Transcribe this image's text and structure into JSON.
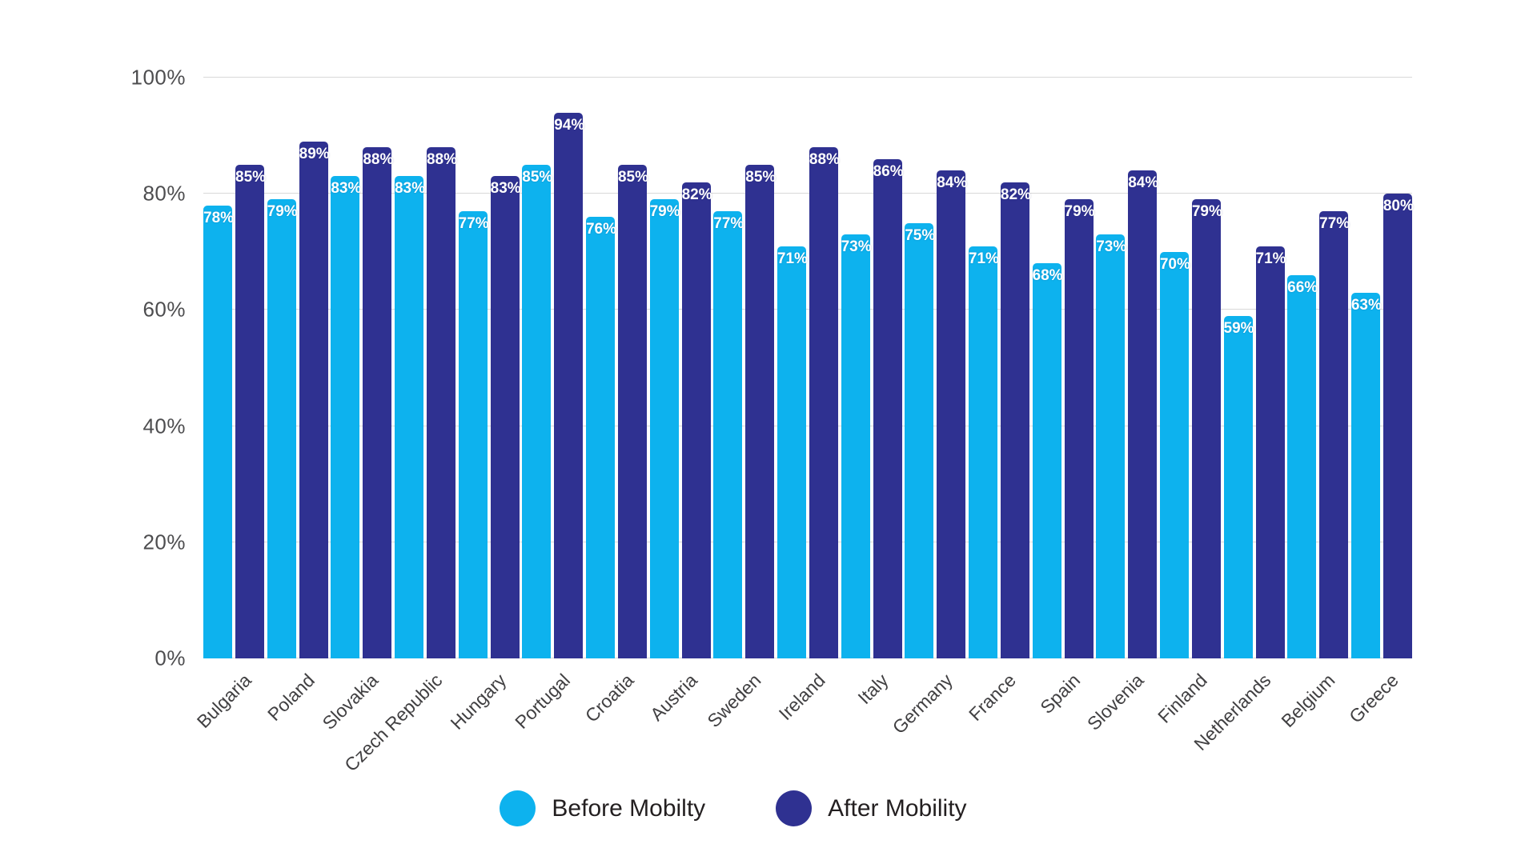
{
  "chart_data": {
    "type": "bar",
    "title": "",
    "xlabel": "",
    "ylabel": "",
    "categories": [
      "Bulgaria",
      "Poland",
      "Slovakia",
      "Czech Republic",
      "Hungary",
      "Portugal",
      "Croatia",
      "Austria",
      "Sweden",
      "Ireland",
      "Italy",
      "Germany",
      "France",
      "Spain",
      "Slovenia",
      "Finland",
      "Netherlands",
      "Belgium",
      "Greece"
    ],
    "series": [
      {
        "name": "Before Mobilty",
        "color": "#0db2ee",
        "values": [
          78,
          79,
          83,
          83,
          77,
          85,
          76,
          79,
          77,
          71,
          73,
          75,
          71,
          68,
          73,
          70,
          59,
          66,
          63
        ]
      },
      {
        "name": "After Mobility",
        "color": "#2f3191",
        "values": [
          85,
          89,
          88,
          88,
          83,
          94,
          85,
          82,
          85,
          88,
          86,
          84,
          82,
          79,
          84,
          79,
          71,
          77,
          80
        ]
      }
    ],
    "ylim": [
      0,
      100
    ],
    "yticks": [
      0,
      20,
      40,
      60,
      80,
      100
    ],
    "ytick_suffix": "%",
    "value_suffix": "%",
    "grid": true,
    "value_labels": "inside-top",
    "legend_position": "bottom"
  },
  "colors": {
    "background": "#ffffff",
    "grid": "#d9d9d9",
    "axis_text": "#4d4d4f",
    "category_text": "#414042",
    "value_text": "#ffffff",
    "legend_text": "#231f20"
  }
}
